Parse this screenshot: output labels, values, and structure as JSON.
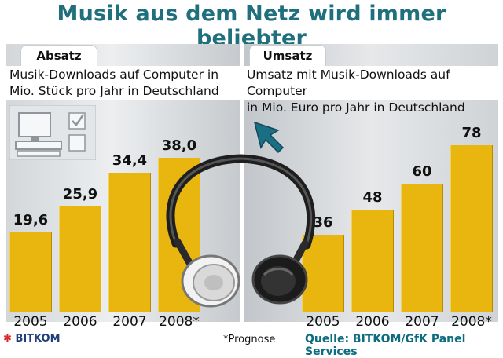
{
  "title": "Musik aus dem Netz wird immer beliebter",
  "chart_data": [
    {
      "type": "bar",
      "panel_label": "Absatz",
      "subtitle": "Musik-Downloads auf Computer in Mio. Stück pro Jahr in Deutschland",
      "subtitle_lines": [
        "Musik-Downloads auf Computer in",
        "Mio. Stück pro Jahr in Deutschland"
      ],
      "categories": [
        "2005",
        "2006",
        "2007",
        "2008*"
      ],
      "values": [
        19.6,
        25.9,
        34.4,
        38.0
      ],
      "value_labels": [
        "19,6",
        "25,9",
        "34,4",
        "38,0"
      ],
      "ylim": [
        0,
        45
      ],
      "grid": false,
      "bar_color": "#e8b60f"
    },
    {
      "type": "bar",
      "panel_label": "Umsatz",
      "subtitle": "Umsatz mit Musik-Downloads auf Computer in Mio. Euro pro Jahr in Deutschland",
      "subtitle_lines": [
        "Umsatz mit Musik-Downloads auf Computer",
        "in Mio. Euro pro Jahr in Deutschland"
      ],
      "categories": [
        "2005",
        "2006",
        "2007",
        "2008*"
      ],
      "values": [
        36,
        48,
        60,
        78
      ],
      "value_labels": [
        "36",
        "48",
        "60",
        "78"
      ],
      "ylim": [
        0,
        92
      ],
      "grid": false,
      "bar_color": "#e8b60f"
    }
  ],
  "footnote": "*Prognose",
  "source": "Quelle: BITKOM/GfK Panel Services",
  "logo_text": "BITKOM",
  "colors": {
    "title": "#1f6f7c",
    "source": "#0d6c7f",
    "bar": "#e8b60f"
  },
  "icons": [
    "computer-icon",
    "checkbox-icon",
    "cursor-arrow-icon",
    "headphones-icon"
  ]
}
